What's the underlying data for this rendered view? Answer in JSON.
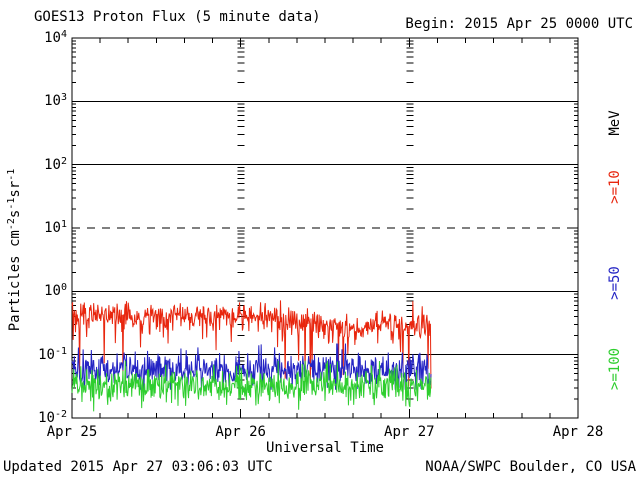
{
  "header": {
    "title": "GOES13 Proton Flux (5 minute data)",
    "begin_label": "Begin: 2015 Apr 25 0000 UTC"
  },
  "footer": {
    "updated": "Updated 2015 Apr 27 03:06:03 UTC",
    "source": "NOAA/SWPC Boulder, CO USA"
  },
  "chart_data": {
    "type": "line",
    "title": "GOES13 Proton Flux (5 minute data)",
    "xlabel": "Universal Time",
    "x_axis": {
      "tick_labels": [
        "Apr 25",
        "Apr 26",
        "Apr 27",
        "Apr 28"
      ],
      "range_days": 3,
      "minor_tick_hours": 4
    },
    "y_axis": {
      "base_label": "10",
      "label_parts": [
        [
          "Particles cm",
          "text"
        ],
        [
          "-2",
          "sup"
        ],
        [
          "s",
          "text"
        ],
        [
          "-1",
          "sup"
        ],
        [
          "sr",
          "text"
        ],
        [
          "-1",
          "sup"
        ]
      ],
      "scale": "log",
      "decade_exponents": [
        4,
        3,
        2,
        1,
        0,
        -1,
        -2
      ],
      "ylim": [
        0.01,
        10000
      ]
    },
    "gridlines": [
      {
        "at_log": 3,
        "style": "solid"
      },
      {
        "at_log": 2,
        "style": "solid"
      },
      {
        "at_log": 1,
        "style": "dashed"
      },
      {
        "at_log": 0,
        "style": "solid"
      },
      {
        "at_log": -1,
        "style": "solid"
      }
    ],
    "vertical_minor_tick_columns_at_days": [
      1,
      2
    ],
    "legend_unit": "MeV",
    "cadence_minutes": 5,
    "data_begin": "2015 Apr 25 0000 UTC",
    "data_end_hour": 51.08,
    "series": [
      {
        "label": ">=10",
        "name": "proton-flux-ge-10MeV",
        "color": "#e8260e",
        "approx_range": [
          0.1,
          0.7
        ],
        "baseline_hour_flux": [
          [
            0,
            0.43
          ],
          [
            6,
            0.41
          ],
          [
            12,
            0.4
          ],
          [
            18,
            0.42
          ],
          [
            24,
            0.4
          ],
          [
            30,
            0.38
          ],
          [
            34,
            0.36
          ],
          [
            38,
            0.28
          ],
          [
            41,
            0.26
          ],
          [
            44,
            0.33
          ],
          [
            48,
            0.29
          ],
          [
            51,
            0.3
          ]
        ],
        "noise_log_sigma": 0.1,
        "spike": {
          "prob": 0.1,
          "max_log_depth": 0.42,
          "direction": "down"
        },
        "deep_spike": {
          "prob_early": 0.004,
          "prob_late": 0.03,
          "after_hour": 30,
          "max_log_depth": 1.1
        },
        "clamp": [
          0.022,
          0.72
        ]
      },
      {
        "label": ">=50",
        "name": "proton-flux-ge-50MeV",
        "color": "#2424c4",
        "approx_range": [
          0.03,
          0.14
        ],
        "baseline_hour_flux": [
          [
            0,
            0.055
          ],
          [
            12,
            0.057
          ],
          [
            24,
            0.055
          ],
          [
            36,
            0.058
          ],
          [
            48,
            0.056
          ],
          [
            51,
            0.056
          ]
        ],
        "noise_log_sigma": 0.13,
        "spike": {
          "prob": 0.07,
          "max_log_depth": 0.3,
          "direction": "up"
        },
        "deep_spike": {
          "prob_early": 0.0,
          "prob_late": 0.0,
          "after_hour": 99,
          "max_log_depth": 0
        },
        "clamp": [
          0.028,
          0.15
        ]
      },
      {
        "label": ">=100",
        "name": "proton-flux-ge-100MeV",
        "color": "#2ece2e",
        "approx_range": [
          0.013,
          0.07
        ],
        "baseline_hour_flux": [
          [
            0,
            0.031
          ],
          [
            12,
            0.032
          ],
          [
            24,
            0.031
          ],
          [
            36,
            0.033
          ],
          [
            48,
            0.032
          ],
          [
            51,
            0.032
          ]
        ],
        "noise_log_sigma": 0.13,
        "spike": {
          "prob": 0.07,
          "max_log_depth": 0.28,
          "direction": "up"
        },
        "deep_spike": {
          "prob_early": 0.0,
          "prob_late": 0.0,
          "after_hour": 99,
          "max_log_depth": 0
        },
        "clamp": [
          0.0115,
          0.08
        ]
      }
    ]
  }
}
